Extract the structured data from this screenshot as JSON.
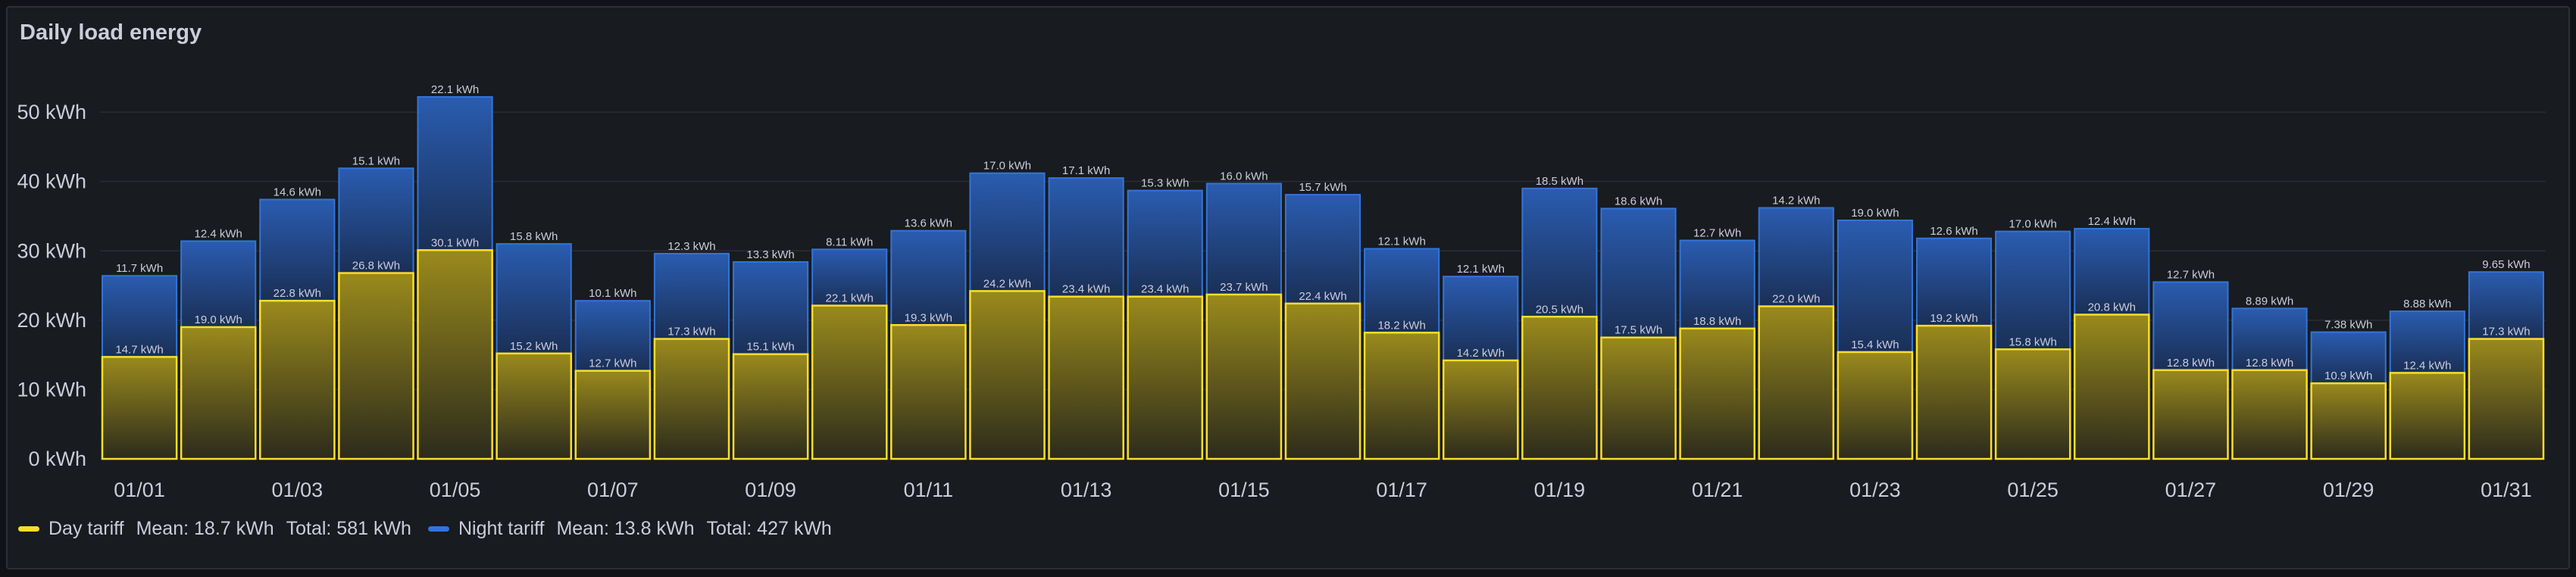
{
  "panel": {
    "title": "Daily load energy"
  },
  "colors": {
    "day": "#fade2a",
    "night": "#3274d9",
    "text": "#ccccdc",
    "grid": "#2a2d33"
  },
  "legend": [
    {
      "name": "Day tariff",
      "color": "#fade2a",
      "mean": "Mean: 18.7 kWh",
      "total": "Total: 581 kWh"
    },
    {
      "name": "Night tariff",
      "color": "#3274d9",
      "mean": "Mean: 13.8 kWh",
      "total": "Total: 427 kWh"
    }
  ],
  "chart_data": {
    "type": "bar",
    "stacked": true,
    "unit": "kWh",
    "categories": [
      "01/01",
      "01/02",
      "01/03",
      "01/04",
      "01/05",
      "01/06",
      "01/07",
      "01/08",
      "01/09",
      "01/10",
      "01/11",
      "01/12",
      "01/13",
      "01/14",
      "01/15",
      "01/16",
      "01/17",
      "01/18",
      "01/19",
      "01/20",
      "01/21",
      "01/22",
      "01/23",
      "01/24",
      "01/25",
      "01/26",
      "01/27",
      "01/28",
      "01/29",
      "01/30",
      "01/31"
    ],
    "x_tick_labels": [
      "01/01",
      "01/03",
      "01/05",
      "01/07",
      "01/09",
      "01/11",
      "01/13",
      "01/15",
      "01/17",
      "01/19",
      "01/21",
      "01/23",
      "01/25",
      "01/27",
      "01/29",
      "01/31"
    ],
    "y_ticks": [
      "0 kWh",
      "10 kWh",
      "20 kWh",
      "30 kWh",
      "40 kWh",
      "50 kWh"
    ],
    "ylim": [
      0,
      57
    ],
    "grid": true,
    "legend_position": "bottom-left",
    "series": [
      {
        "name": "Day tariff",
        "values": [
          14.7,
          19.0,
          22.8,
          26.8,
          30.1,
          15.2,
          12.7,
          17.3,
          15.1,
          22.1,
          19.3,
          24.2,
          23.4,
          23.4,
          23.7,
          22.4,
          18.2,
          14.2,
          20.5,
          17.5,
          18.8,
          22.0,
          15.4,
          19.2,
          15.8,
          20.8,
          12.8,
          12.8,
          10.9,
          12.4,
          17.3
        ],
        "labels": [
          "14.7 kWh",
          "19.0 kWh",
          "22.8 kWh",
          "26.8 kWh",
          "30.1 kWh",
          "15.2 kWh",
          "12.7 kWh",
          "17.3 kWh",
          "15.1 kWh",
          "22.1 kWh",
          "19.3 kWh",
          "24.2 kWh",
          "23.4 kWh",
          "23.4 kWh",
          "23.7 kWh",
          "22.4 kWh",
          "18.2 kWh",
          "14.2 kWh",
          "20.5 kWh",
          "17.5 kWh",
          "18.8 kWh",
          "22.0 kWh",
          "15.4 kWh",
          "19.2 kWh",
          "15.8 kWh",
          "20.8 kWh",
          "12.8 kWh",
          "12.8 kWh",
          "10.9 kWh",
          "12.4 kWh",
          "17.3 kWh"
        ]
      },
      {
        "name": "Night tariff",
        "values": [
          11.7,
          12.4,
          14.6,
          15.1,
          22.1,
          15.8,
          10.1,
          12.3,
          13.3,
          8.11,
          13.6,
          17.0,
          17.1,
          15.3,
          16.0,
          15.7,
          12.1,
          12.1,
          18.5,
          18.6,
          12.7,
          14.2,
          19.0,
          12.6,
          17.0,
          12.4,
          12.7,
          8.89,
          7.38,
          8.88,
          9.65
        ],
        "labels": [
          "11.7 kWh",
          "12.4 kWh",
          "14.6 kWh",
          "15.1 kWh",
          "22.1 kWh",
          "15.8 kWh",
          "10.1 kWh",
          "12.3 kWh",
          "13.3 kWh",
          "8.11 kWh",
          "13.6 kWh",
          "17.0 kWh",
          "17.1 kWh",
          "15.3 kWh",
          "16.0 kWh",
          "15.7 kWh",
          "12.1 kWh",
          "12.1 kWh",
          "18.5 kWh",
          "18.6 kWh",
          "12.7 kWh",
          "14.2 kWh",
          "19.0 kWh",
          "12.6 kWh",
          "17.0 kWh",
          "12.4 kWh",
          "12.7 kWh",
          "8.89 kWh",
          "7.38 kWh",
          "8.88 kWh",
          "9.65 kWh"
        ]
      }
    ]
  }
}
